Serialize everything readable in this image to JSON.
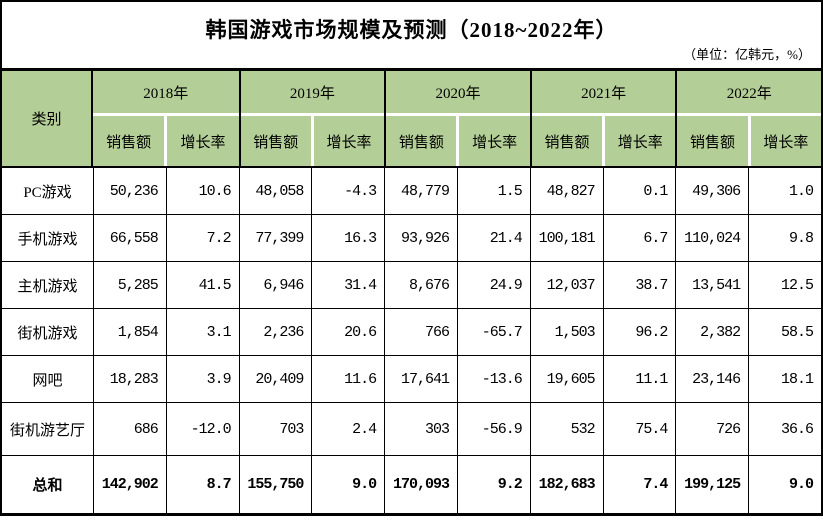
{
  "title": "韩国游戏市场规模及预测（2018~2022年）",
  "unit_note": "（单位：亿韩元，%）",
  "colors": {
    "header_green": "#b3ce96",
    "border": "#000000",
    "background": "#ffffff"
  },
  "table": {
    "category_header": "类别",
    "years": [
      "2018年",
      "2019年",
      "2020年",
      "2021年",
      "2022年"
    ],
    "sub_headers": [
      "销售额",
      "增长率"
    ],
    "rows": [
      {
        "category": "PC游戏",
        "bold": false,
        "values": [
          "50,236",
          "10.6",
          "48,058",
          "-4.3",
          "48,779",
          "1.5",
          "48,827",
          "0.1",
          "49,306",
          "1.0"
        ]
      },
      {
        "category": "手机游戏",
        "bold": false,
        "values": [
          "66,558",
          "7.2",
          "77,399",
          "16.3",
          "93,926",
          "21.4",
          "100,181",
          "6.7",
          "110,024",
          "9.8"
        ]
      },
      {
        "category": "主机游戏",
        "bold": false,
        "values": [
          "5,285",
          "41.5",
          "6,946",
          "31.4",
          "8,676",
          "24.9",
          "12,037",
          "38.7",
          "13,541",
          "12.5"
        ]
      },
      {
        "category": "街机游戏",
        "bold": false,
        "values": [
          "1,854",
          "3.1",
          "2,236",
          "20.6",
          "766",
          "-65.7",
          "1,503",
          "96.2",
          "2,382",
          "58.5"
        ]
      },
      {
        "category": "网吧",
        "bold": false,
        "values": [
          "18,283",
          "3.9",
          "20,409",
          "11.6",
          "17,641",
          "-13.6",
          "19,605",
          "11.1",
          "23,146",
          "18.1"
        ]
      },
      {
        "category": "街机游艺厅",
        "bold": false,
        "values": [
          "686",
          "-12.0",
          "703",
          "2.4",
          "303",
          "-56.9",
          "532",
          "75.4",
          "726",
          "36.6"
        ]
      },
      {
        "category": "总和",
        "bold": true,
        "values": [
          "142,902",
          "8.7",
          "155,750",
          "9.0",
          "170,093",
          "9.2",
          "182,683",
          "7.4",
          "199,125",
          "9.0"
        ]
      }
    ]
  },
  "chart_data": {
    "type": "table",
    "title": "韩国游戏市场规模及预测（2018~2022年）",
    "unit": "亿韩元，%",
    "row_header": "类别",
    "column_groups": [
      "2018年",
      "2019年",
      "2020年",
      "2021年",
      "2022年"
    ],
    "sub_columns": [
      "销售额",
      "增长率"
    ],
    "rows": [
      {
        "category": "PC游戏",
        "sales": [
          50236,
          48058,
          48779,
          48827,
          49306
        ],
        "growth": [
          10.6,
          -4.3,
          1.5,
          0.1,
          1.0
        ]
      },
      {
        "category": "手机游戏",
        "sales": [
          66558,
          77399,
          93926,
          100181,
          110024
        ],
        "growth": [
          7.2,
          16.3,
          21.4,
          6.7,
          9.8
        ]
      },
      {
        "category": "主机游戏",
        "sales": [
          5285,
          6946,
          8676,
          12037,
          13541
        ],
        "growth": [
          41.5,
          31.4,
          24.9,
          38.7,
          12.5
        ]
      },
      {
        "category": "街机游戏",
        "sales": [
          1854,
          2236,
          766,
          1503,
          2382
        ],
        "growth": [
          3.1,
          20.6,
          -65.7,
          96.2,
          58.5
        ]
      },
      {
        "category": "网吧",
        "sales": [
          18283,
          20409,
          17641,
          19605,
          23146
        ],
        "growth": [
          3.9,
          11.6,
          -13.6,
          11.1,
          18.1
        ]
      },
      {
        "category": "街机游艺厅",
        "sales": [
          686,
          703,
          303,
          532,
          726
        ],
        "growth": [
          -12.0,
          2.4,
          -56.9,
          75.4,
          36.6
        ]
      },
      {
        "category": "总和",
        "sales": [
          142902,
          155750,
          170093,
          182683,
          199125
        ],
        "growth": [
          8.7,
          9.0,
          9.2,
          7.4,
          9.0
        ]
      }
    ]
  }
}
